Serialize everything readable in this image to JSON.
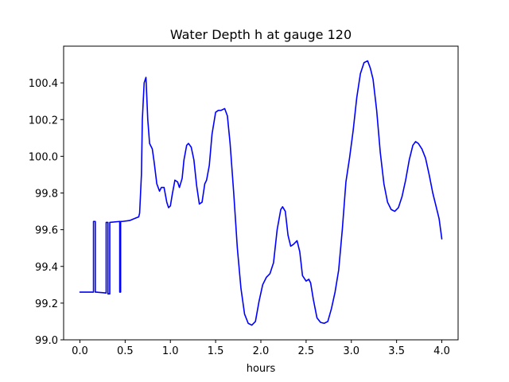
{
  "chart_data": {
    "type": "line",
    "title": "Water Depth h at gauge 120",
    "xlabel": "hours",
    "ylabel": "",
    "xlim": [
      -0.18,
      4.18
    ],
    "ylim": [
      99.0,
      100.6
    ],
    "x_ticks": [
      0.0,
      0.5,
      1.0,
      1.5,
      2.0,
      2.5,
      3.0,
      3.5,
      4.0
    ],
    "x_tick_labels": [
      "0.0",
      "0.5",
      "1.0",
      "1.5",
      "2.0",
      "2.5",
      "3.0",
      "3.5",
      "4.0"
    ],
    "y_ticks": [
      99.0,
      99.2,
      99.4,
      99.6,
      99.8,
      100.0,
      100.2,
      100.4
    ],
    "y_tick_labels": [
      "99.0",
      "99.2",
      "99.4",
      "99.6",
      "99.8",
      "100.0",
      "100.2",
      "100.4"
    ],
    "grid": false,
    "series": [
      {
        "color": "#0000ff",
        "x": [
          0.0,
          0.15,
          0.15,
          0.17,
          0.17,
          0.18,
          0.29,
          0.29,
          0.31,
          0.31,
          0.33,
          0.33,
          0.44,
          0.44,
          0.45,
          0.45,
          0.47,
          0.55,
          0.6,
          0.65,
          0.66,
          0.68,
          0.69,
          0.71,
          0.73,
          0.75,
          0.77,
          0.8,
          0.82,
          0.85,
          0.88,
          0.9,
          0.93,
          0.96,
          0.98,
          1.0,
          1.02,
          1.05,
          1.08,
          1.1,
          1.13,
          1.15,
          1.18,
          1.2,
          1.23,
          1.26,
          1.29,
          1.32,
          1.35,
          1.38,
          1.4,
          1.43,
          1.46,
          1.5,
          1.53,
          1.56,
          1.6,
          1.63,
          1.66,
          1.7,
          1.74,
          1.78,
          1.82,
          1.86,
          1.9,
          1.94,
          1.98,
          2.02,
          2.06,
          2.1,
          2.14,
          2.18,
          2.22,
          2.24,
          2.27,
          2.3,
          2.33,
          2.36,
          2.4,
          2.43,
          2.46,
          2.5,
          2.53,
          2.55,
          2.58,
          2.62,
          2.66,
          2.7,
          2.74,
          2.78,
          2.82,
          2.86,
          2.9,
          2.94,
          2.98,
          3.02,
          3.06,
          3.1,
          3.14,
          3.18,
          3.21,
          3.24,
          3.28,
          3.32,
          3.36,
          3.4,
          3.44,
          3.48,
          3.52,
          3.56,
          3.6,
          3.64,
          3.68,
          3.71,
          3.74,
          3.78,
          3.82,
          3.86,
          3.9,
          3.94,
          3.97,
          4.0
        ],
        "y": [
          99.26,
          99.26,
          99.645,
          99.645,
          99.26,
          99.26,
          99.255,
          99.64,
          99.64,
          99.25,
          99.25,
          99.64,
          99.645,
          99.26,
          99.26,
          99.645,
          99.645,
          99.65,
          99.66,
          99.67,
          99.69,
          99.9,
          100.2,
          100.4,
          100.43,
          100.2,
          100.07,
          100.04,
          99.97,
          99.85,
          99.81,
          99.83,
          99.83,
          99.75,
          99.72,
          99.73,
          99.79,
          99.87,
          99.86,
          99.83,
          99.88,
          99.98,
          100.06,
          100.07,
          100.05,
          99.98,
          99.84,
          99.74,
          99.75,
          99.85,
          99.87,
          99.95,
          100.12,
          100.24,
          100.25,
          100.25,
          100.26,
          100.22,
          100.07,
          99.8,
          99.5,
          99.28,
          99.14,
          99.09,
          99.08,
          99.1,
          99.21,
          99.3,
          99.34,
          99.36,
          99.42,
          99.6,
          99.71,
          99.725,
          99.7,
          99.57,
          99.51,
          99.52,
          99.54,
          99.48,
          99.35,
          99.32,
          99.33,
          99.31,
          99.22,
          99.12,
          99.095,
          99.09,
          99.1,
          99.17,
          99.26,
          99.38,
          99.6,
          99.86,
          99.99,
          100.14,
          100.32,
          100.45,
          100.51,
          100.52,
          100.48,
          100.42,
          100.25,
          100.02,
          99.85,
          99.75,
          99.71,
          99.7,
          99.72,
          99.78,
          99.87,
          99.98,
          100.06,
          100.08,
          100.07,
          100.04,
          99.99,
          99.9,
          99.8,
          99.72,
          99.66,
          99.55
        ]
      }
    ]
  }
}
